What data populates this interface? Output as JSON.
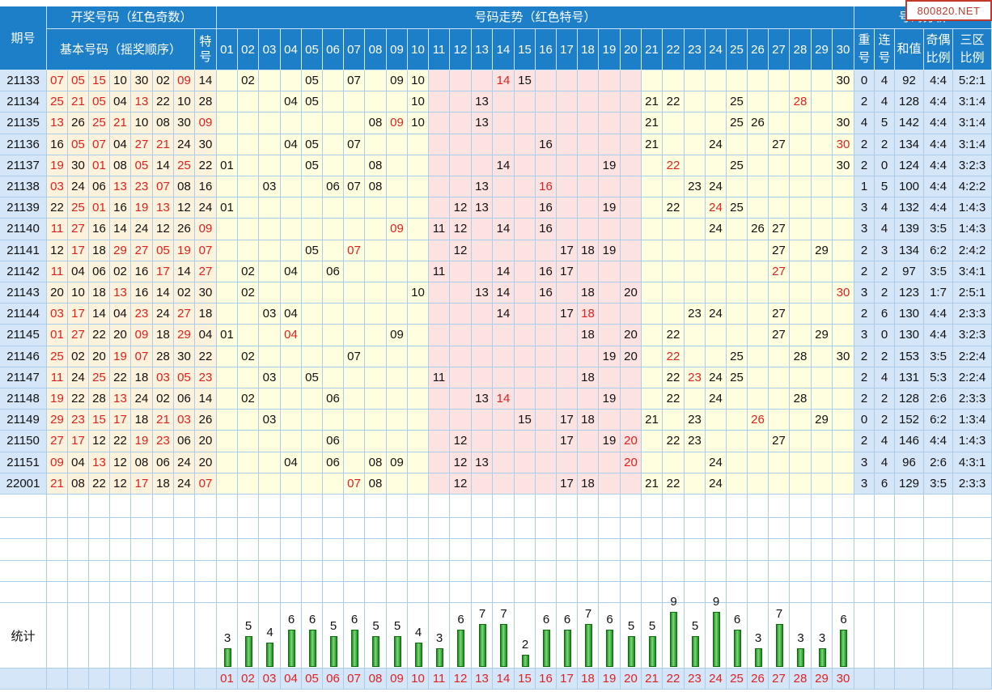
{
  "headers": {
    "period": "期号",
    "draw_group": "开奖号码（红色奇数）",
    "basic_numbers": "基本号码（摇奖顺序）",
    "special": "特号",
    "trend_group": "号码走势（红色特号）",
    "analysis_group": "号码分析",
    "repeat": "重号",
    "consecutive": "连号",
    "sum": "和值",
    "odd_even": "奇偶比例",
    "zone": "三区比例",
    "stats_label": "统计"
  },
  "watermark": "800820.NET",
  "trend_numbers": [
    "01",
    "02",
    "03",
    "04",
    "05",
    "06",
    "07",
    "08",
    "09",
    "10",
    "11",
    "12",
    "13",
    "14",
    "15",
    "16",
    "17",
    "18",
    "19",
    "20",
    "21",
    "22",
    "23",
    "24",
    "25",
    "26",
    "27",
    "28",
    "29",
    "30"
  ],
  "rows": [
    {
      "period": "21133",
      "balls": [
        "07",
        "05",
        "15",
        "10",
        "30",
        "02",
        "09"
      ],
      "special": "14",
      "repeat": "0",
      "consec": "4",
      "sum": "92",
      "odd_even": "4:4",
      "zone": "5:2:1"
    },
    {
      "period": "21134",
      "balls": [
        "25",
        "21",
        "05",
        "04",
        "13",
        "22",
        "10"
      ],
      "special": "28",
      "repeat": "2",
      "consec": "4",
      "sum": "128",
      "odd_even": "4:4",
      "zone": "3:1:4"
    },
    {
      "period": "21135",
      "balls": [
        "13",
        "26",
        "25",
        "21",
        "10",
        "08",
        "30"
      ],
      "special": "09",
      "repeat": "4",
      "consec": "5",
      "sum": "142",
      "odd_even": "4:4",
      "zone": "3:1:4"
    },
    {
      "period": "21136",
      "balls": [
        "16",
        "05",
        "07",
        "04",
        "27",
        "21",
        "24"
      ],
      "special": "30",
      "repeat": "2",
      "consec": "2",
      "sum": "134",
      "odd_even": "4:4",
      "zone": "3:1:4"
    },
    {
      "period": "21137",
      "balls": [
        "19",
        "30",
        "01",
        "08",
        "05",
        "14",
        "25"
      ],
      "special": "22",
      "repeat": "2",
      "consec": "0",
      "sum": "124",
      "odd_even": "4:4",
      "zone": "3:2:3"
    },
    {
      "period": "21138",
      "balls": [
        "03",
        "24",
        "06",
        "13",
        "23",
        "07",
        "08"
      ],
      "special": "16",
      "repeat": "1",
      "consec": "5",
      "sum": "100",
      "odd_even": "4:4",
      "zone": "4:2:2"
    },
    {
      "period": "21139",
      "balls": [
        "22",
        "25",
        "01",
        "16",
        "19",
        "13",
        "12"
      ],
      "special": "24",
      "repeat": "3",
      "consec": "4",
      "sum": "132",
      "odd_even": "4:4",
      "zone": "1:4:3"
    },
    {
      "period": "21140",
      "balls": [
        "11",
        "27",
        "16",
        "14",
        "24",
        "12",
        "26"
      ],
      "special": "09",
      "repeat": "3",
      "consec": "4",
      "sum": "139",
      "odd_even": "3:5",
      "zone": "1:4:3"
    },
    {
      "period": "21141",
      "balls": [
        "12",
        "17",
        "18",
        "29",
        "27",
        "05",
        "19"
      ],
      "special": "07",
      "repeat": "2",
      "consec": "3",
      "sum": "134",
      "odd_even": "6:2",
      "zone": "2:4:2"
    },
    {
      "period": "21142",
      "balls": [
        "11",
        "04",
        "06",
        "02",
        "16",
        "17",
        "14"
      ],
      "special": "27",
      "repeat": "2",
      "consec": "2",
      "sum": "97",
      "odd_even": "3:5",
      "zone": "3:4:1"
    },
    {
      "period": "21143",
      "balls": [
        "20",
        "10",
        "18",
        "13",
        "16",
        "14",
        "02"
      ],
      "special": "30",
      "repeat": "3",
      "consec": "2",
      "sum": "123",
      "odd_even": "1:7",
      "zone": "2:5:1"
    },
    {
      "period": "21144",
      "balls": [
        "03",
        "17",
        "14",
        "04",
        "23",
        "24",
        "27"
      ],
      "special": "18",
      "repeat": "2",
      "consec": "6",
      "sum": "130",
      "odd_even": "4:4",
      "zone": "2:3:3"
    },
    {
      "period": "21145",
      "balls": [
        "01",
        "27",
        "22",
        "20",
        "09",
        "18",
        "29"
      ],
      "special": "04",
      "repeat": "3",
      "consec": "0",
      "sum": "130",
      "odd_even": "4:4",
      "zone": "3:2:3"
    },
    {
      "period": "21146",
      "balls": [
        "25",
        "02",
        "20",
        "19",
        "07",
        "28",
        "30"
      ],
      "special": "22",
      "repeat": "2",
      "consec": "2",
      "sum": "153",
      "odd_even": "3:5",
      "zone": "2:2:4"
    },
    {
      "period": "21147",
      "balls": [
        "11",
        "24",
        "25",
        "22",
        "18",
        "03",
        "05"
      ],
      "special": "23",
      "repeat": "2",
      "consec": "4",
      "sum": "131",
      "odd_even": "5:3",
      "zone": "2:2:4"
    },
    {
      "period": "21148",
      "balls": [
        "19",
        "22",
        "28",
        "13",
        "24",
        "02",
        "06"
      ],
      "special": "14",
      "repeat": "2",
      "consec": "2",
      "sum": "128",
      "odd_even": "2:6",
      "zone": "2:3:3"
    },
    {
      "period": "21149",
      "balls": [
        "29",
        "23",
        "15",
        "17",
        "18",
        "21",
        "03"
      ],
      "special": "26",
      "repeat": "0",
      "consec": "2",
      "sum": "152",
      "odd_even": "6:2",
      "zone": "1:3:4"
    },
    {
      "period": "21150",
      "balls": [
        "27",
        "17",
        "12",
        "22",
        "19",
        "23",
        "06"
      ],
      "special": "20",
      "repeat": "2",
      "consec": "4",
      "sum": "146",
      "odd_even": "4:4",
      "zone": "1:4:3"
    },
    {
      "period": "21151",
      "balls": [
        "09",
        "04",
        "13",
        "12",
        "08",
        "06",
        "24"
      ],
      "special": "20",
      "repeat": "3",
      "consec": "4",
      "sum": "96",
      "odd_even": "2:6",
      "zone": "4:3:1"
    },
    {
      "period": "22001",
      "balls": [
        "21",
        "08",
        "22",
        "12",
        "17",
        "18",
        "24"
      ],
      "special": "07",
      "repeat": "3",
      "consec": "6",
      "sum": "129",
      "odd_even": "3:5",
      "zone": "2:3:3"
    }
  ],
  "chart_data": {
    "type": "bar",
    "categories": [
      "01",
      "02",
      "03",
      "04",
      "05",
      "06",
      "07",
      "08",
      "09",
      "10",
      "11",
      "12",
      "13",
      "14",
      "15",
      "16",
      "17",
      "18",
      "19",
      "20",
      "21",
      "22",
      "23",
      "24",
      "25",
      "26",
      "27",
      "28",
      "29",
      "30"
    ],
    "values": [
      3,
      5,
      4,
      6,
      6,
      5,
      6,
      5,
      5,
      4,
      3,
      6,
      7,
      7,
      2,
      6,
      6,
      7,
      6,
      5,
      5,
      9,
      5,
      9,
      6,
      3,
      7,
      3,
      3,
      6
    ],
    "title": "",
    "xlabel": "",
    "ylabel": "统计"
  },
  "colors": {
    "header_blue": "#1c7fc7",
    "odd_red": "#e02020",
    "left_bg": "#fdf2dc",
    "trend_yellow": "#ffffe0",
    "trend_pink": "#fde2e2",
    "analysis_blue": "#d5e6f8",
    "bar_green": "#1b8a1b"
  }
}
